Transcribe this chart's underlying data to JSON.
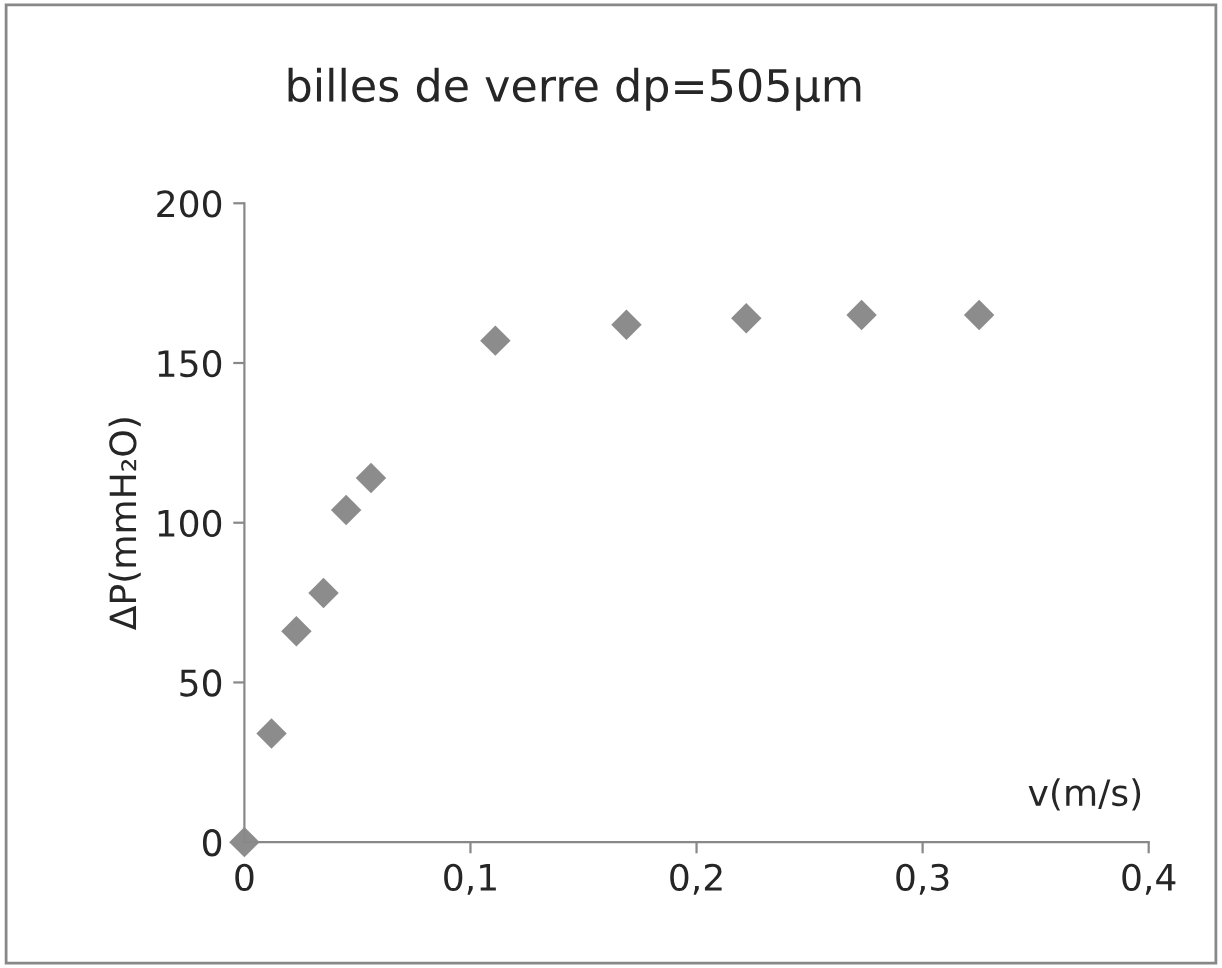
{
  "chart_data": {
    "type": "scatter",
    "title": "billes de verre dp=505µm",
    "xlabel": "v(m/s)",
    "ylabel": "ΔP(mmH₂O)",
    "x": [
      0,
      0.012,
      0.023,
      0.035,
      0.045,
      0.056,
      0.111,
      0.169,
      0.222,
      0.273,
      0.325
    ],
    "series": [
      {
        "color": "#8c8c8c",
        "values": [
          0,
          34,
          66,
          78,
          104,
          114,
          157,
          162,
          164,
          165,
          165
        ]
      }
    ],
    "marker": "diamond",
    "grid": false,
    "legend": false,
    "xlim": [
      0,
      0.4
    ],
    "xticks": [
      0,
      {
        "value": 0.1,
        "label": "0,1"
      },
      {
        "value": 0.2,
        "label": "0,2"
      },
      {
        "value": 0.3,
        "label": "0,3"
      },
      {
        "value": 0.4,
        "label": "0,4"
      }
    ],
    "ylim": [
      0,
      200
    ],
    "yticks": [
      0,
      50,
      100,
      150,
      200
    ]
  }
}
